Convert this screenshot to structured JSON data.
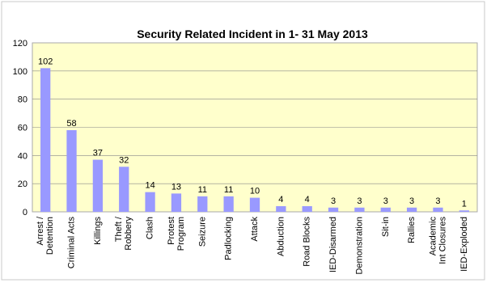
{
  "chart_data": {
    "type": "bar",
    "title": "Security Related  Incident in  1- 31 May 2013",
    "xlabel": "",
    "ylabel": "",
    "ylim": [
      0,
      120
    ],
    "yticks": [
      "0",
      "20",
      "40",
      "60",
      "80",
      "100",
      "120"
    ],
    "grid": true,
    "legend": "none",
    "colors": {
      "bar": "#9999ff",
      "plot_bg": "#ffffcc",
      "frame": "#aaaaaa",
      "grid": "#888888"
    },
    "categories": [
      "Arrest / Detention",
      "Criminal Acts",
      "Killings",
      "Theft / Robbery",
      "Clash",
      "Protest Program",
      "Seizure",
      "Padlocking",
      "Attack",
      "Abduction",
      "Road Blocks",
      "IED-Disarmed",
      "Demonstration",
      "Sit-in",
      "Rallies",
      "Academic Int Closures",
      "IED-Exploded"
    ],
    "category_lines": [
      [
        "Arrest /",
        "Detention"
      ],
      [
        "Criminal Acts"
      ],
      [
        "Killings"
      ],
      [
        "Theft /",
        "Robbery"
      ],
      [
        "Clash"
      ],
      [
        "Protest",
        "Program"
      ],
      [
        "Seizure"
      ],
      [
        "Padlocking"
      ],
      [
        "Attack"
      ],
      [
        "Abduction"
      ],
      [
        "Road Blocks"
      ],
      [
        "IED-Disarmed"
      ],
      [
        "Demonstration"
      ],
      [
        "Sit-in"
      ],
      [
        "Rallies"
      ],
      [
        "Academic",
        "Int Closures"
      ],
      [
        "IED-Exploded"
      ]
    ],
    "values": [
      102,
      58,
      37,
      32,
      14,
      13,
      11,
      11,
      10,
      4,
      4,
      3,
      3,
      3,
      3,
      3,
      1
    ],
    "value_labels": [
      "102",
      "58",
      "37",
      "32",
      "14",
      "13",
      "11",
      "11",
      "10",
      "4",
      "4",
      "3",
      "3",
      "3",
      "3",
      "3",
      "1"
    ]
  }
}
